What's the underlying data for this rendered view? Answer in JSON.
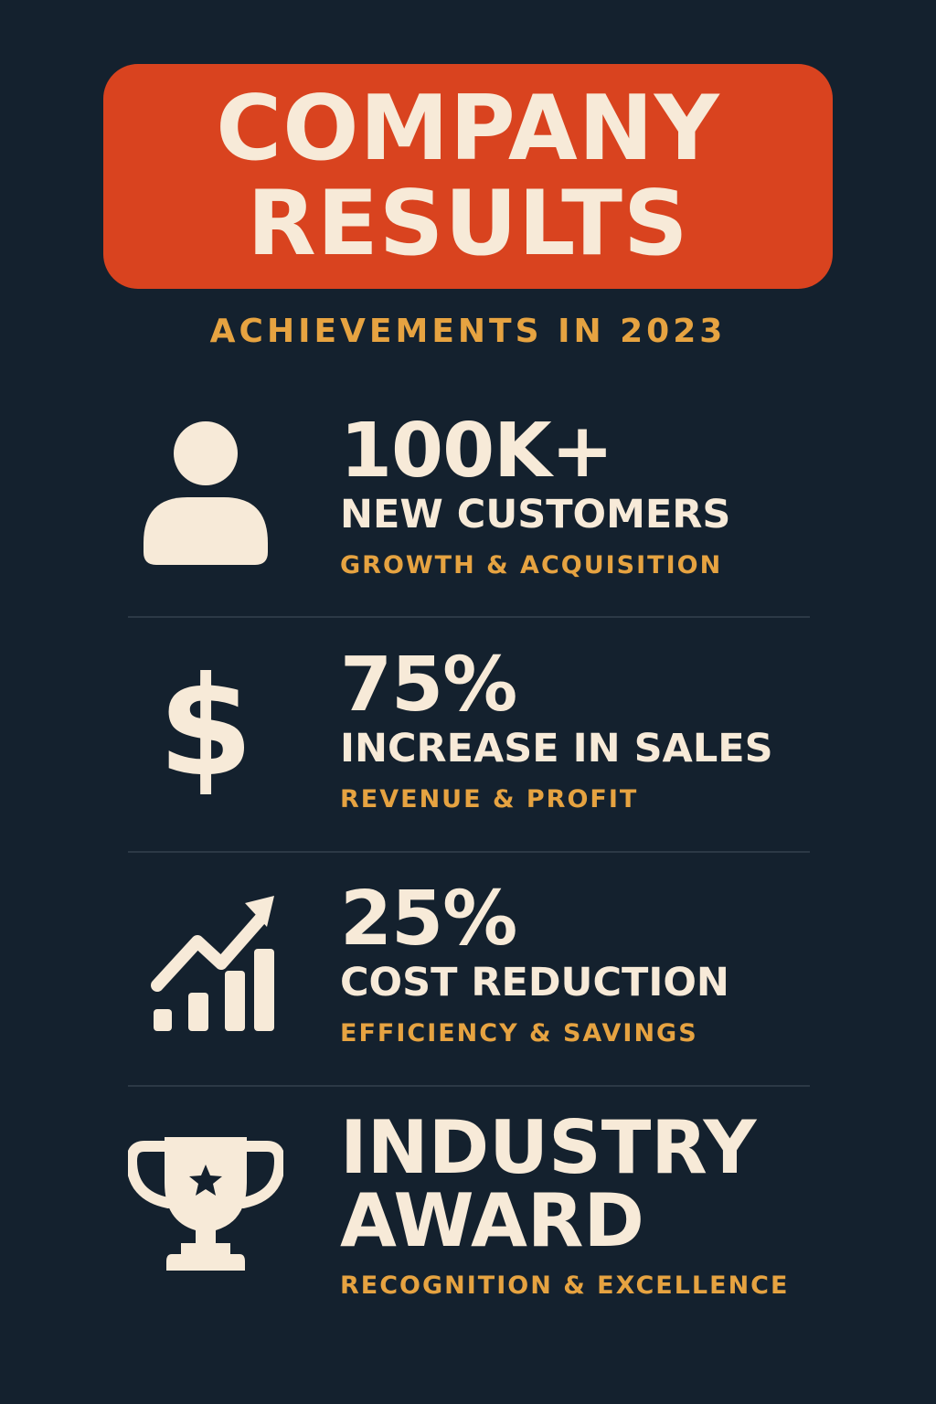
{
  "header": {
    "title_line1": "COMPANY",
    "title_line2": "RESULTS",
    "subtitle": "ACHIEVEMENTS IN 2023"
  },
  "colors": {
    "background": "#14212e",
    "banner": "#d9431f",
    "primary_text": "#f7ead8",
    "accent_text": "#e6a341"
  },
  "stats": [
    {
      "icon": "person-icon",
      "value": "100K+",
      "label": "NEW CUSTOMERS",
      "sub": "GROWTH & ACQUISITION"
    },
    {
      "icon": "dollar-icon",
      "value": "75%",
      "label": "INCREASE IN SALES",
      "sub": "REVENUE & PROFIT"
    },
    {
      "icon": "growth-chart-icon",
      "value": "25%",
      "label": "COST REDUCTION",
      "sub": "EFFICIENCY & SAVINGS"
    },
    {
      "icon": "trophy-icon",
      "label_line1": "INDUSTRY",
      "label_line2": "AWARD",
      "sub": "RECOGNITION & EXCELLENCE"
    }
  ],
  "icon_glyphs": {
    "dollar": "$"
  }
}
